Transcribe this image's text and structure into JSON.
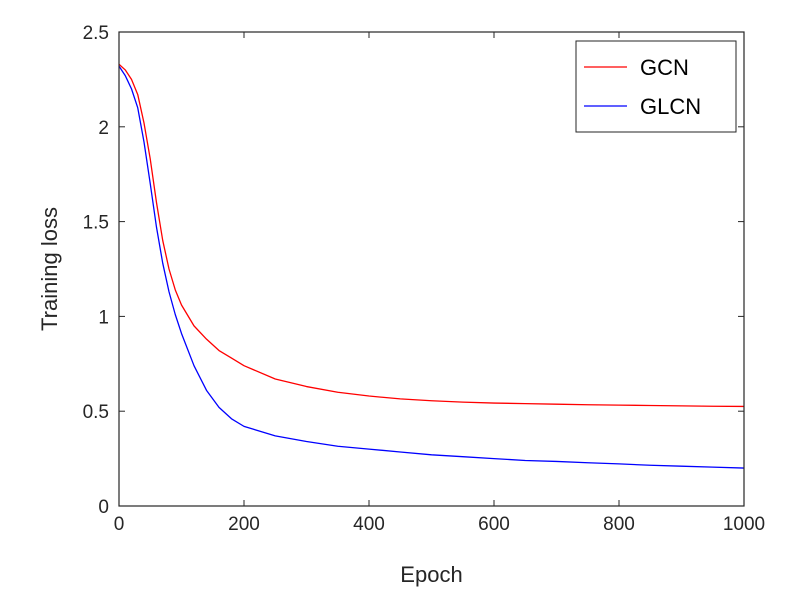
{
  "chart_data": {
    "type": "line",
    "title": "",
    "xlabel": "Epoch",
    "ylabel": "Training loss",
    "xlim": [
      0,
      1000
    ],
    "ylim": [
      0,
      2.5
    ],
    "xticks": [
      0,
      200,
      400,
      600,
      800,
      1000
    ],
    "yticks": [
      0,
      0.5,
      1,
      1.5,
      2,
      2.5
    ],
    "xtick_labels": [
      "0",
      "200",
      "400",
      "600",
      "800",
      "1000"
    ],
    "ytick_labels": [
      "0",
      "0.5",
      "1",
      "1.5",
      "2",
      "2.5"
    ],
    "grid": false,
    "legend_position": "top-right",
    "series": [
      {
        "name": "GCN",
        "color": "#ff0000",
        "x": [
          0,
          10,
          20,
          30,
          40,
          50,
          60,
          70,
          80,
          90,
          100,
          120,
          140,
          160,
          180,
          200,
          250,
          300,
          350,
          400,
          450,
          500,
          550,
          600,
          650,
          700,
          750,
          800,
          850,
          900,
          950,
          1000
        ],
        "y": [
          2.33,
          2.3,
          2.25,
          2.17,
          2.02,
          1.83,
          1.6,
          1.4,
          1.25,
          1.14,
          1.06,
          0.95,
          0.88,
          0.82,
          0.78,
          0.74,
          0.67,
          0.63,
          0.6,
          0.58,
          0.565,
          0.555,
          0.548,
          0.543,
          0.54,
          0.537,
          0.534,
          0.532,
          0.53,
          0.528,
          0.526,
          0.525
        ]
      },
      {
        "name": "GLCN",
        "color": "#0000ff",
        "x": [
          0,
          10,
          20,
          30,
          40,
          50,
          60,
          70,
          80,
          90,
          100,
          120,
          140,
          160,
          180,
          200,
          250,
          300,
          350,
          400,
          450,
          500,
          550,
          600,
          650,
          700,
          750,
          800,
          850,
          900,
          950,
          1000
        ],
        "y": [
          2.32,
          2.27,
          2.2,
          2.1,
          1.92,
          1.7,
          1.47,
          1.28,
          1.13,
          1.01,
          0.91,
          0.74,
          0.61,
          0.52,
          0.46,
          0.42,
          0.37,
          0.34,
          0.315,
          0.3,
          0.285,
          0.27,
          0.26,
          0.25,
          0.24,
          0.235,
          0.228,
          0.222,
          0.215,
          0.21,
          0.205,
          0.2
        ]
      }
    ]
  }
}
